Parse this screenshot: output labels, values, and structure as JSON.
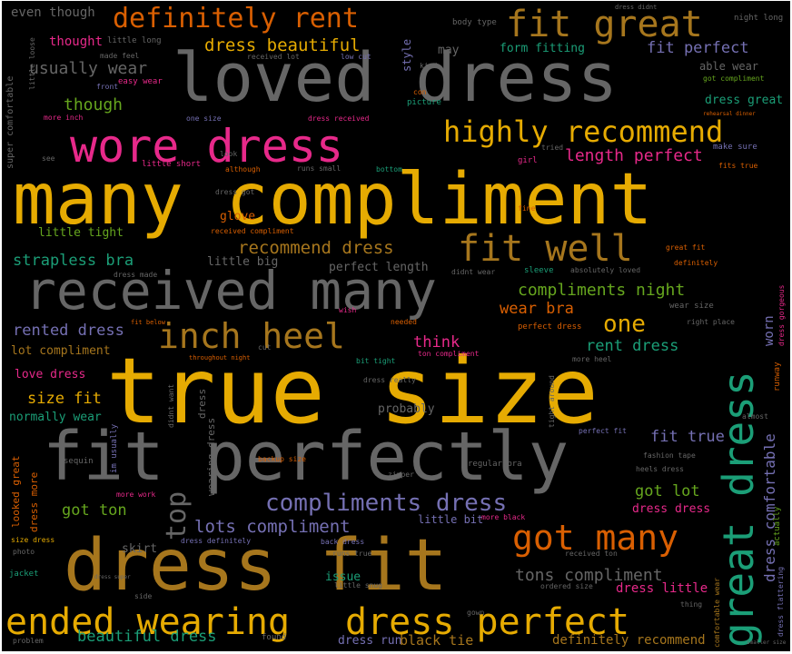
{
  "palette": {
    "background": "#000000",
    "gold": "#e6ab02",
    "gray": "#666666",
    "pink": "#e7298a",
    "orange": "#d95f02",
    "brown": "#a6761d",
    "teal": "#1b9e77",
    "purple": "#7570b3",
    "green": "#66a61e"
  },
  "words": [
    {
      "text": "true size",
      "color": "#e6ab02",
      "vertical": false
    },
    {
      "text": "many compliment",
      "color": "#e6ab02",
      "vertical": false
    },
    {
      "text": "loved dress",
      "color": "#666666",
      "vertical": false
    },
    {
      "text": "fit perfectly",
      "color": "#666666",
      "vertical": false
    },
    {
      "text": "dress fit",
      "color": "#a6761d",
      "vertical": false
    },
    {
      "text": "received many",
      "color": "#666666",
      "vertical": false
    },
    {
      "text": "wore dress",
      "color": "#e7298a",
      "vertical": false
    },
    {
      "text": "great dress",
      "color": "#1b9e77",
      "vertical": true
    },
    {
      "text": "dress perfect",
      "color": "#e6ab02",
      "vertical": false
    },
    {
      "text": "ended wearing",
      "color": "#e6ab02",
      "vertical": false
    },
    {
      "text": "fit well",
      "color": "#a6761d",
      "vertical": false
    },
    {
      "text": "inch heel",
      "color": "#a6761d",
      "vertical": false
    },
    {
      "text": "fit great",
      "color": "#a6761d",
      "vertical": false
    },
    {
      "text": "got many",
      "color": "#d95f02",
      "vertical": false
    },
    {
      "text": "highly recommend",
      "color": "#e6ab02",
      "vertical": false
    },
    {
      "text": "definitely rent",
      "color": "#d95f02",
      "vertical": false
    },
    {
      "text": "compliments dress",
      "color": "#7570b3",
      "vertical": false
    },
    {
      "text": "top",
      "color": "#666666",
      "vertical": true
    },
    {
      "text": "one",
      "color": "#e6ab02",
      "vertical": false
    },
    {
      "text": "dress beautiful",
      "color": "#e6ab02",
      "vertical": false
    },
    {
      "text": "recommend dress",
      "color": "#a6761d",
      "vertical": false
    },
    {
      "text": "length perfect",
      "color": "#e7298a",
      "vertical": false
    },
    {
      "text": "lots compliment",
      "color": "#7570b3",
      "vertical": false
    },
    {
      "text": "tons compliment",
      "color": "#666666",
      "vertical": false
    },
    {
      "text": "fit perfect",
      "color": "#7570b3",
      "vertical": false
    },
    {
      "text": "usually wear",
      "color": "#666666",
      "vertical": false
    },
    {
      "text": "though",
      "color": "#66a61e",
      "vertical": false
    },
    {
      "text": "strapless bra",
      "color": "#1b9e77",
      "vertical": false
    },
    {
      "text": "compliments night",
      "color": "#66a61e",
      "vertical": false
    },
    {
      "text": "rented dress",
      "color": "#7570b3",
      "vertical": false
    },
    {
      "text": "wear bra",
      "color": "#d95f02",
      "vertical": false
    },
    {
      "text": "rent dress",
      "color": "#1b9e77",
      "vertical": false
    },
    {
      "text": "think",
      "color": "#e7298a",
      "vertical": false
    },
    {
      "text": "size fit",
      "color": "#e6ab02",
      "vertical": false
    },
    {
      "text": "fit true",
      "color": "#7570b3",
      "vertical": false
    },
    {
      "text": "got lot",
      "color": "#66a61e",
      "vertical": false
    },
    {
      "text": "got ton",
      "color": "#66a61e",
      "vertical": false
    },
    {
      "text": "beautiful dress",
      "color": "#1b9e77",
      "vertical": false
    },
    {
      "text": "dress comfortable",
      "color": "#7570b3",
      "vertical": true
    },
    {
      "text": "worn",
      "color": "#7570b3",
      "vertical": true
    },
    {
      "text": "dress run",
      "color": "#7570b3",
      "vertical": false
    },
    {
      "text": "black tie",
      "color": "#a6761d",
      "vertical": false
    },
    {
      "text": "definitely recommend",
      "color": "#a6761d",
      "vertical": false
    },
    {
      "text": "dress little",
      "color": "#e7298a",
      "vertical": false
    },
    {
      "text": "dress dress",
      "color": "#e7298a",
      "vertical": false
    },
    {
      "text": "love dress",
      "color": "#e7298a",
      "vertical": false
    },
    {
      "text": "lot compliment",
      "color": "#a6761d",
      "vertical": false
    },
    {
      "text": "dress great",
      "color": "#1b9e77",
      "vertical": false
    },
    {
      "text": "able wear",
      "color": "#666666",
      "vertical": false
    },
    {
      "text": "form fitting",
      "color": "#1b9e77",
      "vertical": false
    },
    {
      "text": "thought",
      "color": "#e7298a",
      "vertical": false
    },
    {
      "text": "even though",
      "color": "#666666",
      "vertical": false
    },
    {
      "text": "perfect length",
      "color": "#666666",
      "vertical": false
    },
    {
      "text": "little big",
      "color": "#666666",
      "vertical": false
    },
    {
      "text": "little tight",
      "color": "#66a61e",
      "vertical": false
    },
    {
      "text": "glove",
      "color": "#d95f02",
      "vertical": false
    },
    {
      "text": "normally wear",
      "color": "#1b9e77",
      "vertical": false
    },
    {
      "text": "probably",
      "color": "#666666",
      "vertical": false
    },
    {
      "text": "issue",
      "color": "#1b9e77",
      "vertical": false
    },
    {
      "text": "skirt",
      "color": "#666666",
      "vertical": false
    },
    {
      "text": "little bit",
      "color": "#7570b3",
      "vertical": false
    },
    {
      "text": "style",
      "color": "#7570b3",
      "vertical": true
    },
    {
      "text": "may",
      "color": "#666666",
      "vertical": false
    },
    {
      "text": "looked great",
      "color": "#d95f02",
      "vertical": true
    },
    {
      "text": "dress more",
      "color": "#d95f02",
      "vertical": true
    },
    {
      "text": "wearing dress",
      "color": "#666666",
      "vertical": true
    },
    {
      "text": "super comfortable",
      "color": "#666666",
      "vertical": true
    },
    {
      "text": "comfortable wear",
      "color": "#a6761d",
      "vertical": true
    },
    {
      "text": "dress flattering",
      "color": "#7570b3",
      "vertical": true
    },
    {
      "text": "dress gorgeous",
      "color": "#e7298a",
      "vertical": true
    },
    {
      "text": "runway",
      "color": "#d95f02",
      "vertical": true
    },
    {
      "text": "actually",
      "color": "#66a61e",
      "vertical": true
    },
    {
      "text": "im usually",
      "color": "#7570b3",
      "vertical": true
    },
    {
      "text": "didnt want",
      "color": "#666666",
      "vertical": true
    },
    {
      "text": "tight around",
      "color": "#666666",
      "vertical": true
    },
    {
      "text": "dress",
      "color": "#666666",
      "vertical": true
    },
    {
      "text": "little long",
      "color": "#666666",
      "vertical": false
    },
    {
      "text": "made feel",
      "color": "#666666",
      "vertical": false
    },
    {
      "text": "front",
      "color": "#7570b3",
      "vertical": false
    },
    {
      "text": "easy wear",
      "color": "#e7298a",
      "vertical": false
    },
    {
      "text": "more inch",
      "color": "#e7298a",
      "vertical": false
    },
    {
      "text": "one size",
      "color": "#7570b3",
      "vertical": false
    },
    {
      "text": "dress received",
      "color": "#e7298a",
      "vertical": false
    },
    {
      "text": "received lot",
      "color": "#666666",
      "vertical": false
    },
    {
      "text": "low cut",
      "color": "#7570b3",
      "vertical": false
    },
    {
      "text": "kind",
      "color": "#666666",
      "vertical": false
    },
    {
      "text": "con",
      "color": "#d95f02",
      "vertical": false
    },
    {
      "text": "picture",
      "color": "#1b9e77",
      "vertical": false
    },
    {
      "text": "body type",
      "color": "#666666",
      "vertical": false
    },
    {
      "text": "dress didnt",
      "color": "#666666",
      "vertical": false
    },
    {
      "text": "night long",
      "color": "#666666",
      "vertical": false
    },
    {
      "text": "got compliment",
      "color": "#66a61e",
      "vertical": false
    },
    {
      "text": "rehearsal dinner",
      "color": "#d95f02",
      "vertical": false
    },
    {
      "text": "make sure",
      "color": "#7570b3",
      "vertical": false
    },
    {
      "text": "fits true",
      "color": "#d95f02",
      "vertical": false
    },
    {
      "text": "tried",
      "color": "#666666",
      "vertical": false
    },
    {
      "text": "girl",
      "color": "#e7298a",
      "vertical": false
    },
    {
      "text": "little short",
      "color": "#e7298a",
      "vertical": false
    },
    {
      "text": "look",
      "color": "#666666",
      "vertical": false
    },
    {
      "text": "although",
      "color": "#d95f02",
      "vertical": false
    },
    {
      "text": "runs small",
      "color": "#666666",
      "vertical": false
    },
    {
      "text": "bottom",
      "color": "#1b9e77",
      "vertical": false
    },
    {
      "text": "little loose",
      "color": "#666666",
      "vertical": false
    },
    {
      "text": "see",
      "color": "#666666",
      "vertical": false
    },
    {
      "text": "dress got",
      "color": "#666666",
      "vertical": false
    },
    {
      "text": "fine",
      "color": "#d95f02",
      "vertical": false
    },
    {
      "text": "received compliment",
      "color": "#d95f02",
      "vertical": false
    },
    {
      "text": "great fit",
      "color": "#d95f02",
      "vertical": false
    },
    {
      "text": "definitely",
      "color": "#d95f02",
      "vertical": false
    },
    {
      "text": "dress made",
      "color": "#666666",
      "vertical": false
    },
    {
      "text": "didnt wear",
      "color": "#666666",
      "vertical": false
    },
    {
      "text": "sleeve",
      "color": "#1b9e77",
      "vertical": false
    },
    {
      "text": "absolutely loved",
      "color": "#666666",
      "vertical": false
    },
    {
      "text": "wear size",
      "color": "#666666",
      "vertical": false
    },
    {
      "text": "right place",
      "color": "#666666",
      "vertical": false
    },
    {
      "text": "fit below",
      "color": "#d95f02",
      "vertical": false
    },
    {
      "text": "wish",
      "color": "#e7298a",
      "vertical": false
    },
    {
      "text": "needed",
      "color": "#d95f02",
      "vertical": false
    },
    {
      "text": "perfect dress",
      "color": "#d95f02",
      "vertical": false
    },
    {
      "text": "more heel",
      "color": "#666666",
      "vertical": false
    },
    {
      "text": "throughout night",
      "color": "#d95f02",
      "vertical": false
    },
    {
      "text": "cut",
      "color": "#666666",
      "vertical": false
    },
    {
      "text": "bit tight",
      "color": "#1b9e77",
      "vertical": false
    },
    {
      "text": "ton compliment",
      "color": "#e7298a",
      "vertical": false
    },
    {
      "text": "dress really",
      "color": "#666666",
      "vertical": false
    },
    {
      "text": "almost",
      "color": "#666666",
      "vertical": false
    },
    {
      "text": "backup size",
      "color": "#d95f02",
      "vertical": false
    },
    {
      "text": "regular bra",
      "color": "#666666",
      "vertical": false
    },
    {
      "text": "perfect fit",
      "color": "#7570b3",
      "vertical": false
    },
    {
      "text": "sequin",
      "color": "#666666",
      "vertical": false
    },
    {
      "text": "fashion tape",
      "color": "#666666",
      "vertical": false
    },
    {
      "text": "heels dress",
      "color": "#666666",
      "vertical": false
    },
    {
      "text": "zipper",
      "color": "#666666",
      "vertical": false
    },
    {
      "text": "photo",
      "color": "#666666",
      "vertical": false
    },
    {
      "text": "size dress",
      "color": "#e6ab02",
      "vertical": false
    },
    {
      "text": "more work",
      "color": "#e7298a",
      "vertical": false
    },
    {
      "text": "dress definitely",
      "color": "#7570b3",
      "vertical": false
    },
    {
      "text": "back dress",
      "color": "#7570b3",
      "vertical": false
    },
    {
      "text": "runs true",
      "color": "#666666",
      "vertical": false
    },
    {
      "text": "received ton",
      "color": "#666666",
      "vertical": false
    },
    {
      "text": "more black",
      "color": "#e7298a",
      "vertical": false
    },
    {
      "text": "jacket",
      "color": "#1b9e77",
      "vertical": false
    },
    {
      "text": "dress super",
      "color": "#666666",
      "vertical": false
    },
    {
      "text": "little snug",
      "color": "#666666",
      "vertical": false
    },
    {
      "text": "ordered size",
      "color": "#666666",
      "vertical": false
    },
    {
      "text": "side",
      "color": "#666666",
      "vertical": false
    },
    {
      "text": "thing",
      "color": "#666666",
      "vertical": false
    },
    {
      "text": "found",
      "color": "#666666",
      "vertical": false
    },
    {
      "text": "gown",
      "color": "#666666",
      "vertical": false
    },
    {
      "text": "problem",
      "color": "#666666",
      "vertical": false
    },
    {
      "text": "smaller size",
      "color": "#666666",
      "vertical": false
    }
  ]
}
